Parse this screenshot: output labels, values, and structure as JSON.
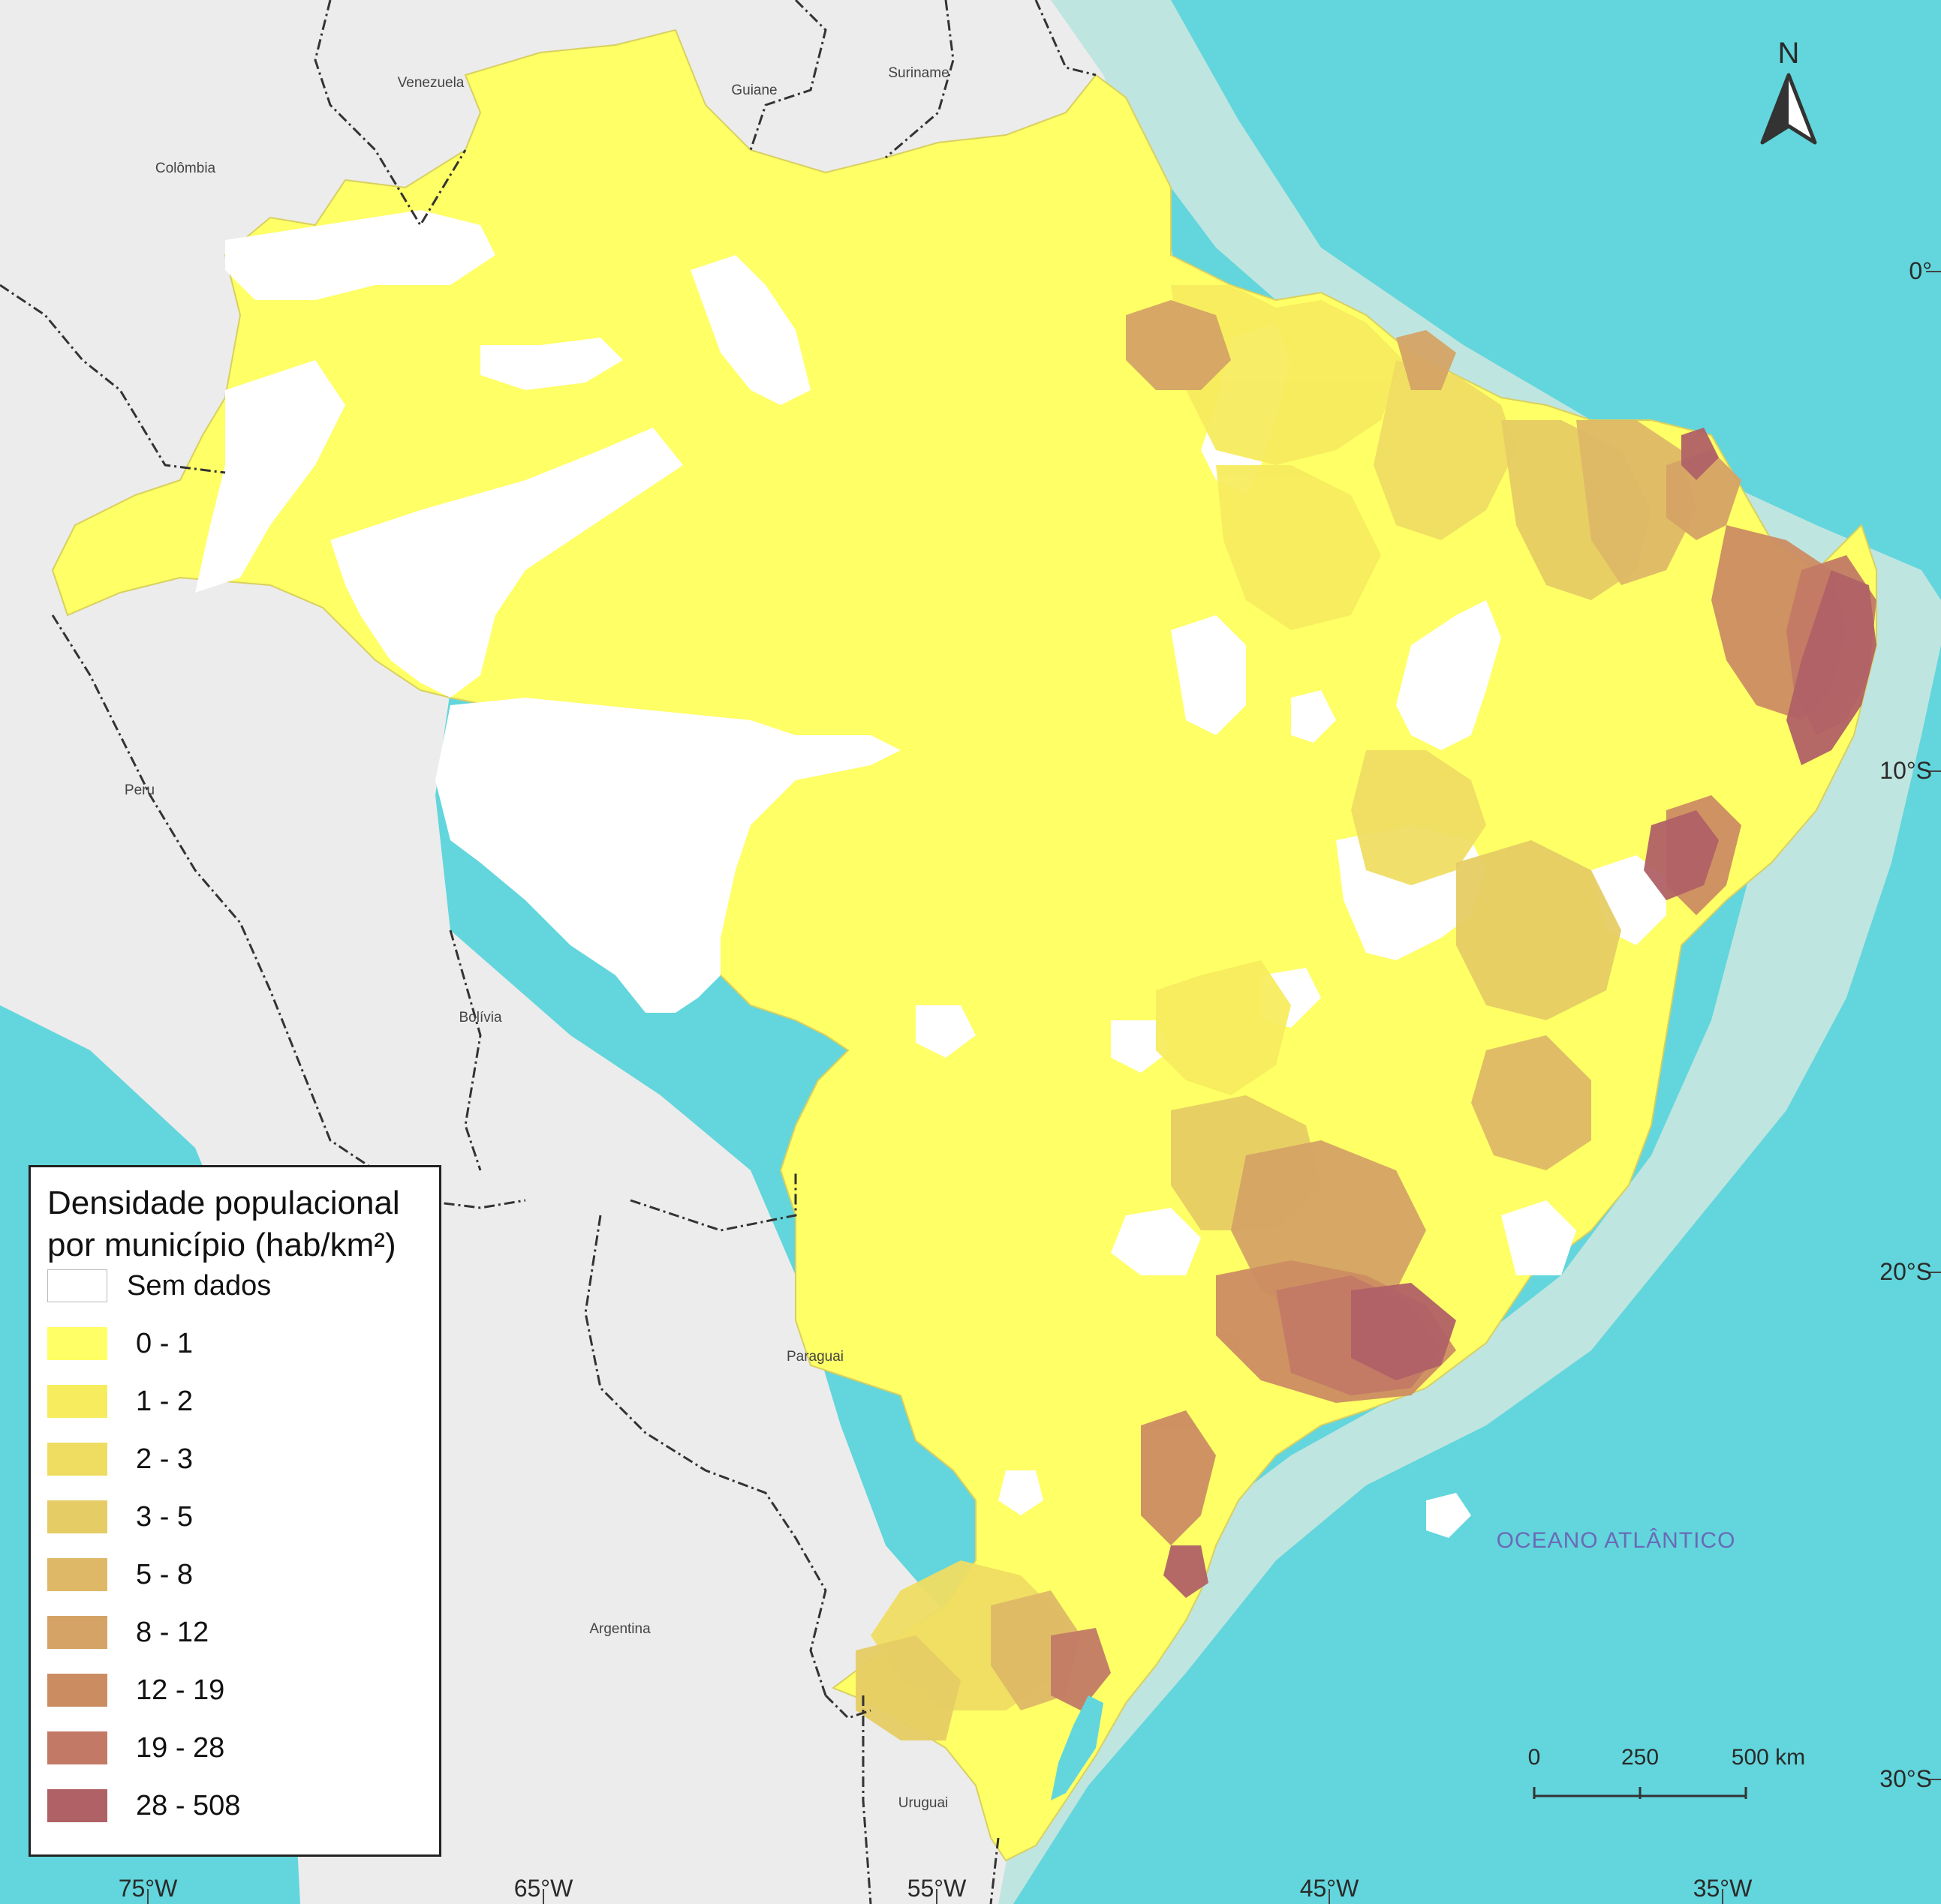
{
  "map": {
    "countries": {
      "venezuela": "Venezuela",
      "guiane": "Guiane",
      "suriname": "Suriname",
      "colombia": "Colômbia",
      "peru": "Peru",
      "bolivia": "Bolívia",
      "paraguai": "Paraguai",
      "argentina": "Argentina",
      "uruguai": "Uruguai"
    },
    "ocean_label": "OCEANO ATLÂNTICO",
    "longitude_ticks": [
      "75°W",
      "65°W",
      "55°W",
      "45°W",
      "35°W"
    ],
    "latitude_ticks": [
      "0°",
      "10°S",
      "20°S",
      "30°S"
    ],
    "north_arrow": {
      "label": "N",
      "icon": "north-arrow-icon"
    },
    "scale_bar": {
      "ticks": [
        "0",
        "250",
        "500 km"
      ]
    },
    "colors": {
      "ocean_deep": "#62d6dc",
      "ocean_shelf": "#bfe5e0",
      "neighbor_land": "#ececec",
      "border_line": "#333333"
    }
  },
  "legend": {
    "title_line1": "Densidade populacional",
    "title_line2": "por município (hab/km²)",
    "items": [
      {
        "label": "Sem dados",
        "color": "#ffffff"
      },
      {
        "label": "0 - 1",
        "color": "#ffff66"
      },
      {
        "label": "1 - 2",
        "color": "#f7ec5e"
      },
      {
        "label": "2 - 3",
        "color": "#efdd62"
      },
      {
        "label": "3 - 5",
        "color": "#e6cc64"
      },
      {
        "label": "5 - 8",
        "color": "#deb866"
      },
      {
        "label": "8 - 12",
        "color": "#d5a365"
      },
      {
        "label": "12 - 19",
        "color": "#cc8c62"
      },
      {
        "label": "19 - 28",
        "color": "#c27a66"
      },
      {
        "label": "28 - 508",
        "color": "#b06166"
      }
    ]
  }
}
